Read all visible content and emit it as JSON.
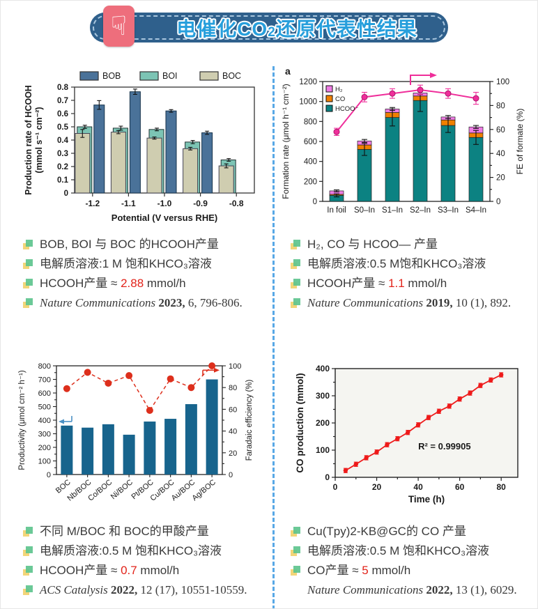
{
  "accent_red": "#e2231a",
  "divider_color": "#58a8e6",
  "header": {
    "title_main": "电催化CO",
    "title_sub": "2",
    "title_rest": "还原代表性结果",
    "icon": "hand-pointing-down",
    "icon_glyph": "☟",
    "pill_color": "#2f608c",
    "icon_bg": "#ee6e7c",
    "title_color": "#279fdc"
  },
  "bullet_icon": {
    "yellow": "#f2d579",
    "green": "#5ec48e"
  },
  "chart_data": [
    {
      "type": "bar",
      "legend_position": "top",
      "categories": [
        "-1.2",
        "-1.1",
        "-1.0",
        "-0.9",
        "-0.8"
      ],
      "series": [
        {
          "name": "BOB",
          "color": "#4a7299",
          "values": [
            0.665,
            0.765,
            0.62,
            0.455,
            null
          ],
          "errors": [
            0.033,
            0.02,
            0.01,
            0.012,
            null
          ]
        },
        {
          "name": "BOI",
          "color": "#7cc4b4",
          "values": [
            0.5,
            0.49,
            0.48,
            0.385,
            0.25
          ],
          "errors": [
            0.012,
            0.015,
            0.01,
            0.012,
            0.01
          ]
        },
        {
          "name": "BOC",
          "color": "#cfcdb0",
          "values": [
            0.45,
            0.46,
            0.415,
            0.335,
            0.205
          ],
          "errors": [
            0.03,
            0.012,
            0.008,
            0.01,
            0.015
          ]
        }
      ],
      "xlabel": "Potential (V versus RHE)",
      "ylabel_line1": "Production rate of HCOOH",
      "ylabel_line2": "(mmol s⁻¹ cm⁻²)",
      "ylim": [
        0,
        0.8
      ],
      "ytick_step": 0.1
    },
    {
      "type": "bar",
      "stacked": true,
      "panel_label": "a",
      "categories": [
        "In foil",
        "S0–In",
        "S1–In",
        "S2–In",
        "S3–In",
        "S4–In"
      ],
      "series": [
        {
          "name": "HCOO⁻",
          "color": "#0c8282",
          "values": [
            60,
            520,
            840,
            1010,
            760,
            640
          ],
          "errors": [
            15,
            60,
            85,
            110,
            70,
            70
          ]
        },
        {
          "name": "CO",
          "color": "#f08000",
          "values": [
            10,
            45,
            50,
            45,
            55,
            45
          ]
        },
        {
          "name": "H₂",
          "color": "#ee7ce4",
          "values": [
            35,
            40,
            35,
            30,
            30,
            60
          ]
        }
      ],
      "total_errors": [
        10,
        15,
        15,
        15,
        15,
        15
      ],
      "line": {
        "name": "FE of formate",
        "color": "#ef2e9a",
        "values": [
          58,
          87,
          90,
          93,
          90,
          86
        ],
        "errors": [
          3,
          4,
          4,
          4,
          4,
          5
        ]
      },
      "ylabel_left": "Formation rate (μmol h⁻¹ cm⁻²)",
      "ylabel_right": "FE of formate (%)",
      "ylim_left": [
        0,
        1200
      ],
      "ylim_right": [
        0,
        100
      ]
    },
    {
      "type": "bar",
      "categories": [
        "BOC",
        "Nb/BOC",
        "Co/BOC",
        "Ni/BOC",
        "Pt/BOC",
        "Cu/BOC",
        "Au/BOC",
        "Ag/BOC"
      ],
      "bars": {
        "name": "Productivity",
        "color": "#17648d",
        "values": [
          360,
          345,
          370,
          293,
          390,
          410,
          518,
          700
        ]
      },
      "line": {
        "name": "Faradaic efficiency",
        "color": "#dd2f1c",
        "dashed": true,
        "values": [
          79,
          94,
          84,
          91,
          59,
          88,
          80,
          100
        ]
      },
      "ylabel_left": "Productivity  (μmol cm⁻² h⁻¹)",
      "ylabel_right": "Faradaic efficiency (%)",
      "ylim_left": [
        0,
        800
      ],
      "ylim_right": [
        0,
        100
      ]
    },
    {
      "type": "line",
      "x": [
        5,
        10,
        15,
        20,
        25,
        30,
        35,
        40,
        45,
        50,
        55,
        60,
        65,
        70,
        75,
        80
      ],
      "y": [
        25,
        48,
        72,
        93,
        120,
        142,
        165,
        193,
        220,
        243,
        262,
        288,
        310,
        338,
        358,
        377
      ],
      "point_error": 8,
      "color": "#ee1a1a",
      "annotation": "R² = 0.99905",
      "annotation_xy": [
        40,
        103
      ],
      "xlabel": "Time (h)",
      "ylabel": "CO production (mmol)",
      "xlim": [
        0,
        88
      ],
      "ylim": [
        0,
        400
      ],
      "xticks": [
        0,
        20,
        40,
        60,
        80
      ],
      "yticks": [
        0,
        100,
        200,
        300,
        400
      ],
      "plot_bg": "#f5f5f1"
    }
  ],
  "panels": [
    {
      "bullets": [
        {
          "icon": true,
          "segs": [
            {
              "t": "BOB, BOI 与 BOC 的HCOOH产量"
            }
          ]
        },
        {
          "icon": true,
          "segs": [
            {
              "t": "电解质溶液:1 M 饱和KHCO₃溶液"
            }
          ]
        },
        {
          "icon": true,
          "segs": [
            {
              "t": "HCOOH产量 ≈ "
            },
            {
              "t": "2.88",
              "s": "r"
            },
            {
              "t": " mmol/h"
            }
          ]
        },
        {
          "icon": true,
          "segs": [
            {
              "t": "Nature Communications ",
              "s": "ci"
            },
            {
              "t": "2023,",
              "s": "cb"
            },
            {
              "t": " 6, 796-806.",
              "s": "c"
            }
          ]
        }
      ]
    },
    {
      "bullets": [
        {
          "icon": true,
          "segs": [
            {
              "t": "H₂, CO 与 HCOO— 产量"
            }
          ]
        },
        {
          "icon": true,
          "segs": [
            {
              "t": "电解质溶液:0.5 M饱和KHCO₃溶液"
            }
          ]
        },
        {
          "icon": true,
          "segs": [
            {
              "t": "HCOOH产量 ≈ "
            },
            {
              "t": "1.1",
              "s": "r"
            },
            {
              "t": " mmol/h"
            }
          ]
        },
        {
          "icon": true,
          "segs": [
            {
              "t": "Nature Communications ",
              "s": "ci"
            },
            {
              "t": "2019,",
              "s": "cb"
            },
            {
              "t": " 10 (1), 892.",
              "s": "c"
            }
          ]
        }
      ]
    },
    {
      "bullets": [
        {
          "icon": true,
          "segs": [
            {
              "t": "不同 M/BOC 和 BOC的甲酸产量"
            }
          ]
        },
        {
          "icon": true,
          "segs": [
            {
              "t": "电解质溶液:0.5 M 饱和KHCO₃溶液"
            }
          ]
        },
        {
          "icon": true,
          "segs": [
            {
              "t": "HCOOH产量 ≈ "
            },
            {
              "t": "0.7",
              "s": "r"
            },
            {
              "t": " mmol/h"
            }
          ]
        },
        {
          "icon": true,
          "segs": [
            {
              "t": "ACS Catalysis ",
              "s": "ci"
            },
            {
              "t": "2022,",
              "s": "cb"
            },
            {
              "t": " 12 (17), 10551-10559.",
              "s": "c"
            }
          ]
        }
      ]
    },
    {
      "bullets": [
        {
          "icon": true,
          "segs": [
            {
              "t": "Cu(Tpy)2-KB@GC的 CO 产量"
            }
          ]
        },
        {
          "icon": true,
          "segs": [
            {
              "t": "电解质溶液:0.5 M 饱和KHCO₃溶液"
            }
          ]
        },
        {
          "icon": true,
          "segs": [
            {
              "t": "CO产量 ≈ "
            },
            {
              "t": "5",
              "s": "r"
            },
            {
              "t": " mmol/h"
            }
          ]
        },
        {
          "icon": false,
          "segs": [
            {
              "t": "Nature Communications ",
              "s": "ci"
            },
            {
              "t": "2022,",
              "s": "cb"
            },
            {
              "t": " 13 (1), 6029.",
              "s": "c"
            }
          ]
        }
      ]
    }
  ]
}
